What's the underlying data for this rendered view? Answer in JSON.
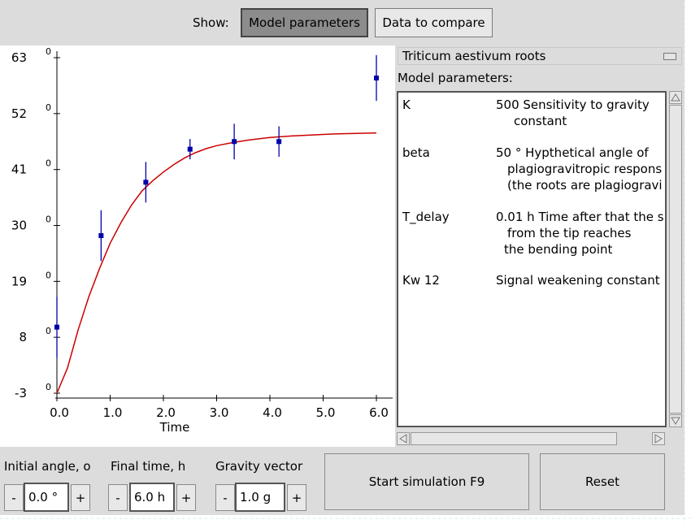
{
  "toolbar": {
    "show_label": "Show:",
    "model_params_label": "Model parameters",
    "data_compare_label": "Data to compare"
  },
  "panel": {
    "species": "Triticum aestivum roots",
    "params_title": "Model parameters:",
    "params": [
      {
        "name": "K",
        "lines": [
          "500 Sensitivity to gravity",
          "constant"
        ]
      },
      {
        "name": "beta",
        "lines": [
          "50 ° Hypthetical angle of",
          "plagiogravitropic respons",
          "(the roots are plagiogravi"
        ]
      },
      {
        "name": "T_delay",
        "lines": [
          "0.01 h Time after that the s",
          "from the tip reaches",
          "the bending point"
        ]
      },
      {
        "name": "Kw 12",
        "lines": [
          "Signal weakening constant"
        ]
      }
    ]
  },
  "controls": {
    "initial_angle_label": "Initial angle, o",
    "initial_angle_value": "0.0 °",
    "final_time_label": "Final time, h",
    "final_time_value": "6.0 h",
    "gravity_label": "Gravity vector",
    "gravity_value": "1.0 g",
    "minus": "-",
    "plus": "+",
    "start_label": "Start simulation F9",
    "reset_label": "Reset"
  },
  "chart_data": {
    "type": "line",
    "xlabel": "Time",
    "xlim": [
      0,
      6
    ],
    "ylim": [
      -3,
      63
    ],
    "xticks": [
      0,
      1,
      2,
      3,
      4,
      5,
      6
    ],
    "xtick_labels": [
      "0.0",
      "1.0",
      "2.0",
      "3.0",
      "4.0",
      "5.0",
      "6.0"
    ],
    "yticks": [
      -3,
      8,
      19,
      30,
      41,
      52,
      63
    ],
    "ytick_labels": [
      "-3",
      "8",
      "19",
      "30",
      "41",
      "52",
      "63"
    ],
    "ytick_secondary_labels": [
      "0",
      "0",
      "0",
      "0",
      "0",
      "0",
      "0"
    ],
    "colors": {
      "curve": "#cc0000",
      "points": "#0000aa"
    },
    "model_curve": {
      "x": [
        0,
        0.2,
        0.4,
        0.6,
        0.8,
        1.0,
        1.2,
        1.4,
        1.6,
        1.8,
        2.0,
        2.2,
        2.4,
        2.6,
        2.8,
        3.0,
        3.3,
        3.6,
        4.0,
        4.4,
        4.8,
        5.2,
        5.6,
        6.0
      ],
      "y": [
        -3,
        2,
        9.5,
        16,
        21.5,
        26.5,
        30.5,
        34,
        36.8,
        38.8,
        40.5,
        42,
        43.3,
        44.3,
        45.1,
        45.7,
        46.3,
        46.8,
        47.3,
        47.6,
        47.8,
        48,
        48.1,
        48.2
      ]
    },
    "measurements": {
      "x": [
        0,
        0.83,
        1.67,
        2.5,
        3.33,
        4.17,
        6.0
      ],
      "y": [
        10,
        28,
        38.5,
        45,
        46.5,
        46.5,
        59
      ],
      "err": [
        6,
        5,
        4,
        2,
        3.5,
        3,
        4.5
      ]
    }
  }
}
